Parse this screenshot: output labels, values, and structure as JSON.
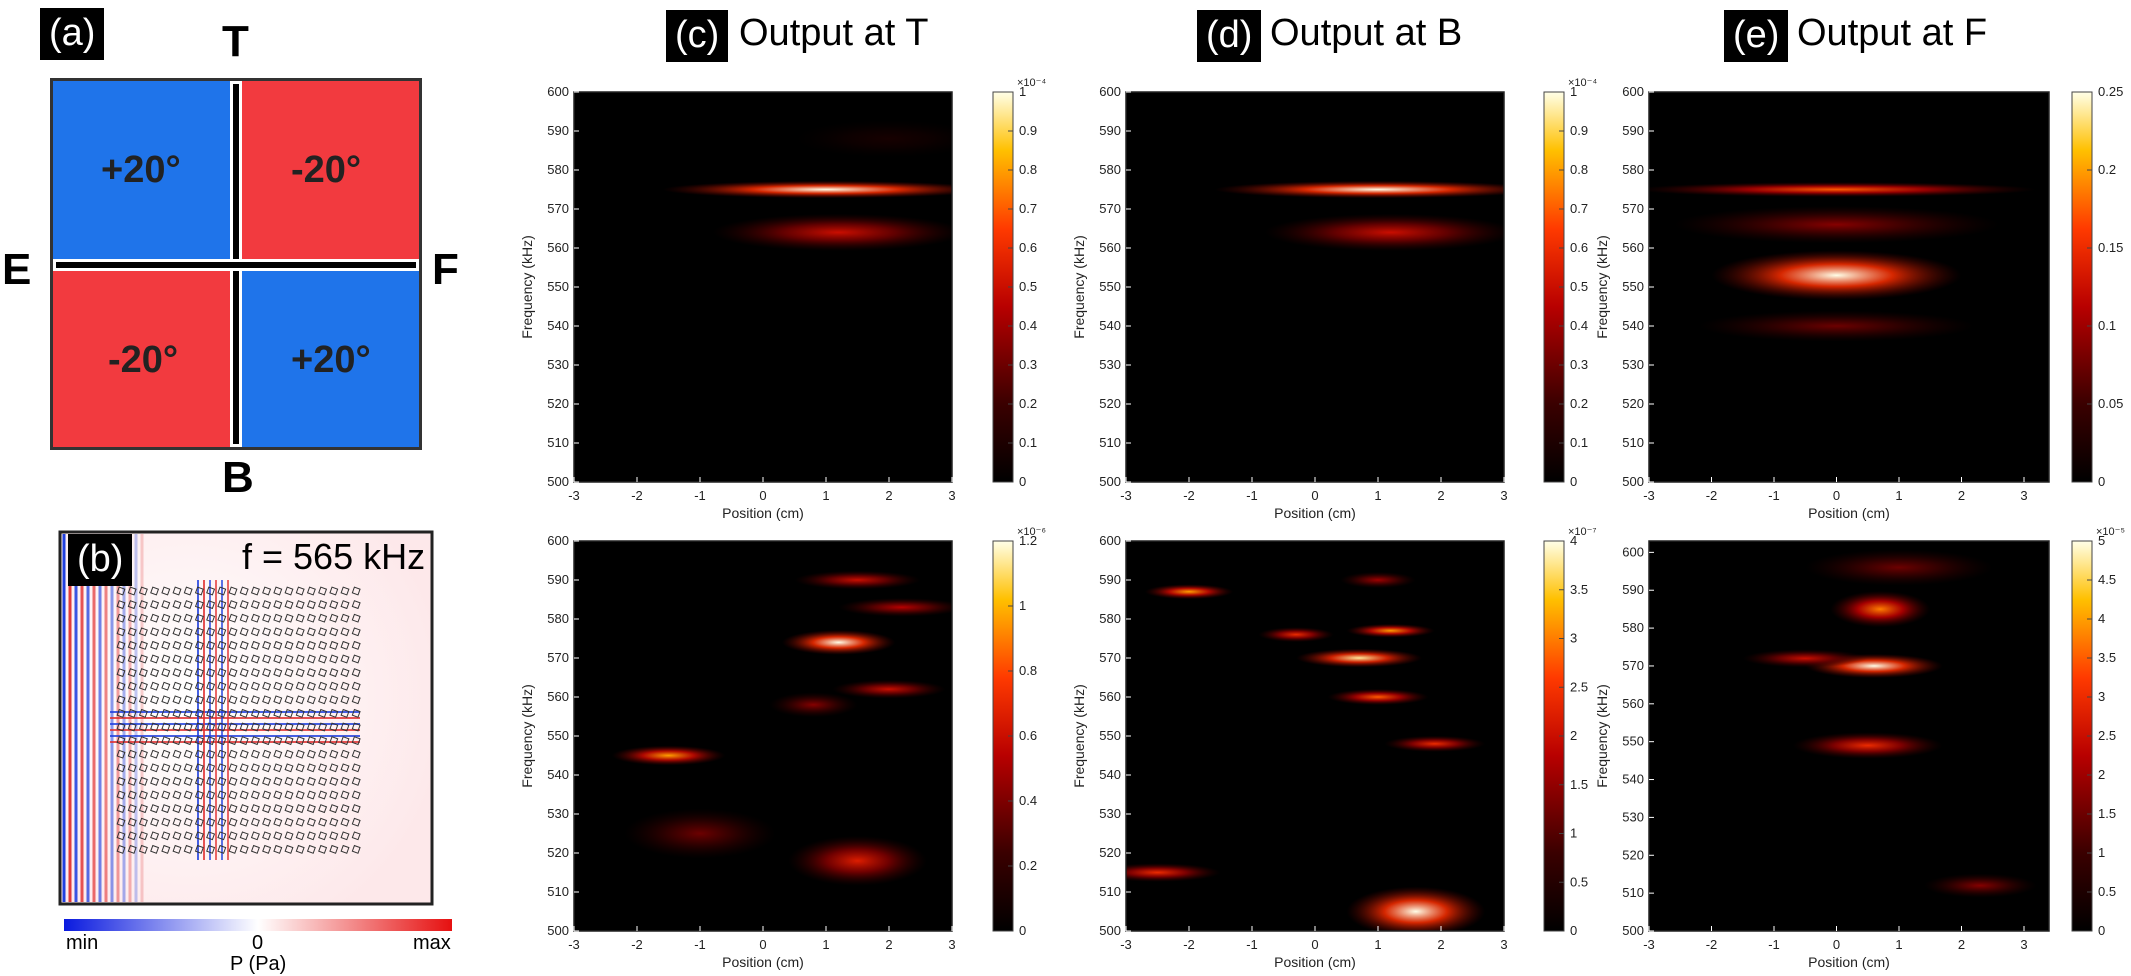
{
  "panel_a": {
    "tag": "(a)",
    "top": "T",
    "bottom": "B",
    "left": "E",
    "right": "F",
    "q_tl": "+20°",
    "q_tr": "-20°",
    "q_bl": "-20°",
    "q_br": "+20°",
    "blue": "#1f74ea",
    "red": "#f23a3f"
  },
  "panel_b": {
    "tag": "(b)",
    "freq": "f = 565 kHz",
    "cb_min": "min",
    "cb_zero": "0",
    "cb_max": "max",
    "cb_label": "P (Pa)"
  },
  "headers": {
    "c_tag": "(c)",
    "c_title": "Output at T",
    "d_tag": "(d)",
    "d_title": "Output at B",
    "e_tag": "(e)",
    "e_title": "Output at F"
  },
  "chart_data": [
    {
      "id": "c-top",
      "type": "heatmap",
      "xlabel": "Position (cm)",
      "ylabel": "Frequency (kHz)",
      "xlim": [
        -3,
        3
      ],
      "xticks": [
        "-3",
        "-2",
        "-1",
        "0",
        "1",
        "2",
        "3"
      ],
      "ylim": [
        500,
        600
      ],
      "yticks": [
        "500",
        "510",
        "520",
        "530",
        "540",
        "550",
        "560",
        "570",
        "580",
        "590",
        "600"
      ],
      "cbar_exp": "×10⁻⁴",
      "cbar_max": 1,
      "cbar_ticks": [
        "0",
        "0.1",
        "0.2",
        "0.3",
        "0.4",
        "0.5",
        "0.6",
        "0.7",
        "0.8",
        "0.9",
        "1"
      ],
      "blobs": [
        {
          "x": 1.0,
          "y": 575,
          "sx": 2.6,
          "sy": 1.4,
          "a": 1.0
        },
        {
          "x": 1.2,
          "y": 564,
          "sx": 2.0,
          "sy": 3.0,
          "a": 0.5
        },
        {
          "x": 2.0,
          "y": 588,
          "sx": 1.5,
          "sy": 3,
          "a": 0.08
        }
      ]
    },
    {
      "id": "d-top",
      "type": "heatmap",
      "xlabel": "Position (cm)",
      "ylabel": "Frequency (kHz)",
      "xlim": [
        -3,
        3
      ],
      "xticks": [
        "-3",
        "-2",
        "-1",
        "0",
        "1",
        "2",
        "3"
      ],
      "ylim": [
        500,
        600
      ],
      "yticks": [
        "500",
        "510",
        "520",
        "530",
        "540",
        "550",
        "560",
        "570",
        "580",
        "590",
        "600"
      ],
      "cbar_exp": "×10⁻⁴",
      "cbar_max": 1,
      "cbar_ticks": [
        "0",
        "0.1",
        "0.2",
        "0.3",
        "0.4",
        "0.5",
        "0.6",
        "0.7",
        "0.8",
        "0.9",
        "1"
      ],
      "blobs": [
        {
          "x": 1.0,
          "y": 575,
          "sx": 2.6,
          "sy": 1.4,
          "a": 1.0
        },
        {
          "x": 1.2,
          "y": 564,
          "sx": 2.0,
          "sy": 3.0,
          "a": 0.5
        }
      ]
    },
    {
      "id": "e-top",
      "type": "heatmap",
      "xlabel": "Position (cm)",
      "ylabel": "Frequency (kHz)",
      "xlim": [
        -3,
        3.4
      ],
      "xticks": [
        "-3",
        "-2",
        "-1",
        "0",
        "1",
        "2",
        "3"
      ],
      "ylim": [
        500,
        600
      ],
      "yticks": [
        "500",
        "510",
        "520",
        "530",
        "540",
        "550",
        "560",
        "570",
        "580",
        "590",
        "600"
      ],
      "cbar_exp": "",
      "cbar_max": 0.25,
      "cbar_ticks": [
        "0",
        "0.05",
        "0.1",
        "0.15",
        "0.2",
        "0.25"
      ],
      "blobs": [
        {
          "x": 0,
          "y": 553,
          "sx": 2.0,
          "sy": 4.0,
          "a": 1.0
        },
        {
          "x": 0,
          "y": 575,
          "sx": 3.2,
          "sy": 1.2,
          "a": 0.7
        },
        {
          "x": 0,
          "y": 566,
          "sx": 2.6,
          "sy": 3.0,
          "a": 0.35
        },
        {
          "x": 0,
          "y": 540,
          "sx": 2.2,
          "sy": 2.5,
          "a": 0.3
        }
      ]
    },
    {
      "id": "c-bot",
      "type": "heatmap",
      "xlabel": "Position (cm)",
      "ylabel": "Frequency (kHz)",
      "xlim": [
        -3,
        3
      ],
      "xticks": [
        "-3",
        "-2",
        "-1",
        "0",
        "1",
        "2",
        "3"
      ],
      "ylim": [
        500,
        600
      ],
      "yticks": [
        "500",
        "510",
        "520",
        "530",
        "540",
        "550",
        "560",
        "570",
        "580",
        "590",
        "600"
      ],
      "cbar_exp": "×10⁻⁶",
      "cbar_max": 1.2,
      "cbar_ticks": [
        "0",
        "0.2",
        "0.4",
        "0.6",
        "0.8",
        "1",
        "1.2"
      ],
      "blobs": [
        {
          "x": 1.2,
          "y": 574,
          "sx": 0.9,
          "sy": 2.0,
          "a": 1.0
        },
        {
          "x": -1.5,
          "y": 545,
          "sx": 0.9,
          "sy": 1.6,
          "a": 0.8
        },
        {
          "x": 1.5,
          "y": 518,
          "sx": 1.1,
          "sy": 4,
          "a": 0.55
        },
        {
          "x": 1.5,
          "y": 590,
          "sx": 1.0,
          "sy": 1.5,
          "a": 0.5
        },
        {
          "x": 2,
          "y": 562,
          "sx": 0.9,
          "sy": 1.5,
          "a": 0.5
        },
        {
          "x": 2.2,
          "y": 583,
          "sx": 1.0,
          "sy": 1.5,
          "a": 0.45
        },
        {
          "x": 0.8,
          "y": 558,
          "sx": 0.7,
          "sy": 2,
          "a": 0.35
        },
        {
          "x": -1.0,
          "y": 525,
          "sx": 1.2,
          "sy": 4,
          "a": 0.3
        }
      ]
    },
    {
      "id": "d-bot",
      "type": "heatmap",
      "xlabel": "Position (cm)",
      "ylabel": "Frequency (kHz)",
      "xlim": [
        -3,
        3
      ],
      "xticks": [
        "-3",
        "-2",
        "-1",
        "0",
        "1",
        "2",
        "3"
      ],
      "ylim": [
        500,
        600
      ],
      "yticks": [
        "500",
        "510",
        "520",
        "530",
        "540",
        "550",
        "560",
        "570",
        "580",
        "590",
        "600"
      ],
      "cbar_exp": "×10⁻⁷",
      "cbar_max": 4,
      "cbar_ticks": [
        "0",
        "0.5",
        "1",
        "1.5",
        "2",
        "2.5",
        "3",
        "3.5",
        "4"
      ],
      "blobs": [
        {
          "x": 1.6,
          "y": 505,
          "sx": 1.1,
          "sy": 4,
          "a": 1.0
        },
        {
          "x": 0.7,
          "y": 570,
          "sx": 1.0,
          "sy": 1.5,
          "a": 0.95
        },
        {
          "x": 1.2,
          "y": 577,
          "sx": 0.7,
          "sy": 1.1,
          "a": 0.8
        },
        {
          "x": -2.0,
          "y": 587,
          "sx": 0.7,
          "sy": 1.2,
          "a": 0.8
        },
        {
          "x": 1.0,
          "y": 560,
          "sx": 0.8,
          "sy": 1.3,
          "a": 0.7
        },
        {
          "x": 1.9,
          "y": 548,
          "sx": 0.8,
          "sy": 1.3,
          "a": 0.6
        },
        {
          "x": -2.5,
          "y": 515,
          "sx": 1.0,
          "sy": 1.5,
          "a": 0.6
        },
        {
          "x": -0.3,
          "y": 576,
          "sx": 0.6,
          "sy": 1.2,
          "a": 0.6
        },
        {
          "x": 1.0,
          "y": 590,
          "sx": 0.6,
          "sy": 1.3,
          "a": 0.4
        }
      ]
    },
    {
      "id": "e-bot",
      "type": "heatmap",
      "xlabel": "Position (cm)",
      "ylabel": "Frequency (kHz)",
      "xlim": [
        -3,
        3.4
      ],
      "xticks": [
        "-3",
        "-2",
        "-1",
        "0",
        "1",
        "2",
        "3"
      ],
      "ylim": [
        500,
        603
      ],
      "yticks": [
        "500",
        "510",
        "520",
        "530",
        "540",
        "550",
        "560",
        "570",
        "580",
        "590",
        "600"
      ],
      "cbar_exp": "×10⁻⁵",
      "cbar_max": 5,
      "cbar_ticks": [
        "0",
        "0.5",
        "1",
        "1.5",
        "2",
        "2.5",
        "3",
        "3.5",
        "4",
        "4.5",
        "5"
      ],
      "blobs": [
        {
          "x": 0.6,
          "y": 570,
          "sx": 1.1,
          "sy": 2.0,
          "a": 1.0
        },
        {
          "x": 0.7,
          "y": 585,
          "sx": 0.8,
          "sy": 3,
          "a": 0.75
        },
        {
          "x": 0.5,
          "y": 549,
          "sx": 1.2,
          "sy": 2.2,
          "a": 0.6
        },
        {
          "x": -0.5,
          "y": 572,
          "sx": 1.0,
          "sy": 1.5,
          "a": 0.5
        },
        {
          "x": 2.3,
          "y": 512,
          "sx": 0.9,
          "sy": 2,
          "a": 0.35
        },
        {
          "x": 1,
          "y": 596,
          "sx": 1.5,
          "sy": 3,
          "a": 0.3
        }
      ]
    }
  ]
}
